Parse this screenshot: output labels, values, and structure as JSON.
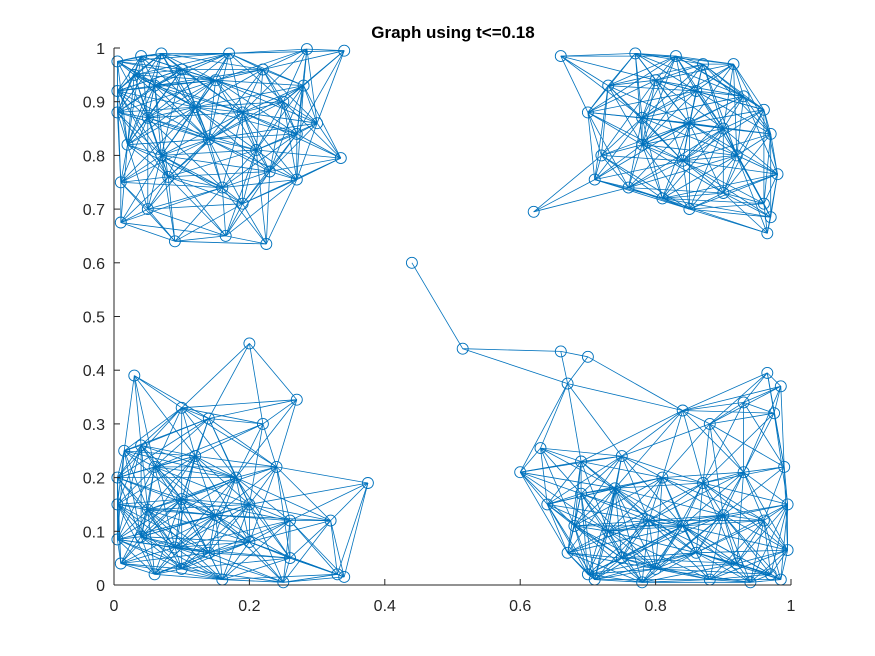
{
  "chart_data": {
    "type": "scatter",
    "subtype": "graph",
    "title": "Graph using t<=0.18",
    "threshold": 0.18,
    "xlim": [
      0,
      1
    ],
    "ylim": [
      0,
      1
    ],
    "x_ticks": [
      "0",
      "0.2",
      "0.4",
      "0.6",
      "0.8",
      "1"
    ],
    "y_ticks": [
      "0",
      "0.1",
      "0.2",
      "0.3",
      "0.4",
      "0.5",
      "0.6",
      "0.7",
      "0.8",
      "0.9",
      "1"
    ],
    "grid": false,
    "legend": "none",
    "color": "#0072BD",
    "nodes": [
      [
        0.005,
        0.975
      ],
      [
        0.04,
        0.985
      ],
      [
        0.07,
        0.99
      ],
      [
        0.17,
        0.99
      ],
      [
        0.285,
        0.998
      ],
      [
        0.34,
        0.995
      ],
      [
        0.005,
        0.92
      ],
      [
        0.03,
        0.95
      ],
      [
        0.06,
        0.93
      ],
      [
        0.1,
        0.96
      ],
      [
        0.15,
        0.94
      ],
      [
        0.22,
        0.96
      ],
      [
        0.28,
        0.93
      ],
      [
        0.005,
        0.88
      ],
      [
        0.05,
        0.87
      ],
      [
        0.12,
        0.89
      ],
      [
        0.19,
        0.88
      ],
      [
        0.25,
        0.9
      ],
      [
        0.3,
        0.86
      ],
      [
        0.02,
        0.82
      ],
      [
        0.07,
        0.8
      ],
      [
        0.14,
        0.83
      ],
      [
        0.21,
        0.81
      ],
      [
        0.27,
        0.84
      ],
      [
        0.335,
        0.795
      ],
      [
        0.01,
        0.75
      ],
      [
        0.08,
        0.76
      ],
      [
        0.16,
        0.74
      ],
      [
        0.23,
        0.77
      ],
      [
        0.27,
        0.755
      ],
      [
        0.01,
        0.675
      ],
      [
        0.05,
        0.7
      ],
      [
        0.09,
        0.64
      ],
      [
        0.165,
        0.65
      ],
      [
        0.225,
        0.635
      ],
      [
        0.19,
        0.71
      ],
      [
        0.66,
        0.985
      ],
      [
        0.77,
        0.99
      ],
      [
        0.83,
        0.985
      ],
      [
        0.87,
        0.97
      ],
      [
        0.915,
        0.97
      ],
      [
        0.73,
        0.93
      ],
      [
        0.8,
        0.94
      ],
      [
        0.86,
        0.92
      ],
      [
        0.93,
        0.91
      ],
      [
        0.96,
        0.885
      ],
      [
        0.7,
        0.88
      ],
      [
        0.78,
        0.87
      ],
      [
        0.85,
        0.86
      ],
      [
        0.9,
        0.85
      ],
      [
        0.97,
        0.84
      ],
      [
        0.72,
        0.8
      ],
      [
        0.78,
        0.82
      ],
      [
        0.84,
        0.79
      ],
      [
        0.92,
        0.8
      ],
      [
        0.98,
        0.765
      ],
      [
        0.71,
        0.755
      ],
      [
        0.76,
        0.74
      ],
      [
        0.81,
        0.72
      ],
      [
        0.85,
        0.7
      ],
      [
        0.9,
        0.73
      ],
      [
        0.96,
        0.71
      ],
      [
        0.97,
        0.685
      ],
      [
        0.965,
        0.655
      ],
      [
        0.62,
        0.695
      ],
      [
        0.44,
        0.6
      ],
      [
        0.515,
        0.44
      ],
      [
        0.66,
        0.435
      ],
      [
        0.7,
        0.425
      ],
      [
        0.67,
        0.375
      ],
      [
        0.015,
        0.25
      ],
      [
        0.04,
        0.26
      ],
      [
        0.1,
        0.33
      ],
      [
        0.14,
        0.31
      ],
      [
        0.2,
        0.45
      ],
      [
        0.03,
        0.39
      ],
      [
        0.22,
        0.3
      ],
      [
        0.27,
        0.345
      ],
      [
        0.005,
        0.2
      ],
      [
        0.06,
        0.22
      ],
      [
        0.12,
        0.24
      ],
      [
        0.18,
        0.2
      ],
      [
        0.24,
        0.22
      ],
      [
        0.005,
        0.15
      ],
      [
        0.05,
        0.14
      ],
      [
        0.1,
        0.16
      ],
      [
        0.15,
        0.13
      ],
      [
        0.2,
        0.15
      ],
      [
        0.26,
        0.12
      ],
      [
        0.32,
        0.12
      ],
      [
        0.375,
        0.19
      ],
      [
        0.005,
        0.085
      ],
      [
        0.04,
        0.09
      ],
      [
        0.09,
        0.07
      ],
      [
        0.14,
        0.06
      ],
      [
        0.2,
        0.08
      ],
      [
        0.26,
        0.05
      ],
      [
        0.01,
        0.04
      ],
      [
        0.06,
        0.02
      ],
      [
        0.1,
        0.03
      ],
      [
        0.16,
        0.01
      ],
      [
        0.25,
        0.005
      ],
      [
        0.33,
        0.02
      ],
      [
        0.34,
        0.015
      ],
      [
        0.6,
        0.21
      ],
      [
        0.63,
        0.255
      ],
      [
        0.69,
        0.23
      ],
      [
        0.75,
        0.24
      ],
      [
        0.84,
        0.325
      ],
      [
        0.88,
        0.3
      ],
      [
        0.93,
        0.34
      ],
      [
        0.965,
        0.395
      ],
      [
        0.985,
        0.37
      ],
      [
        0.975,
        0.32
      ],
      [
        0.64,
        0.15
      ],
      [
        0.69,
        0.17
      ],
      [
        0.74,
        0.18
      ],
      [
        0.81,
        0.2
      ],
      [
        0.87,
        0.19
      ],
      [
        0.93,
        0.21
      ],
      [
        0.99,
        0.22
      ],
      [
        0.68,
        0.11
      ],
      [
        0.73,
        0.1
      ],
      [
        0.79,
        0.12
      ],
      [
        0.84,
        0.11
      ],
      [
        0.9,
        0.13
      ],
      [
        0.96,
        0.12
      ],
      [
        0.995,
        0.15
      ],
      [
        0.67,
        0.06
      ],
      [
        0.7,
        0.02
      ],
      [
        0.75,
        0.05
      ],
      [
        0.8,
        0.03
      ],
      [
        0.86,
        0.06
      ],
      [
        0.92,
        0.04
      ],
      [
        0.97,
        0.02
      ],
      [
        0.995,
        0.065
      ],
      [
        0.71,
        0.01
      ],
      [
        0.78,
        0.005
      ],
      [
        0.88,
        0.01
      ],
      [
        0.94,
        0.005
      ],
      [
        0.985,
        0.01
      ]
    ]
  }
}
